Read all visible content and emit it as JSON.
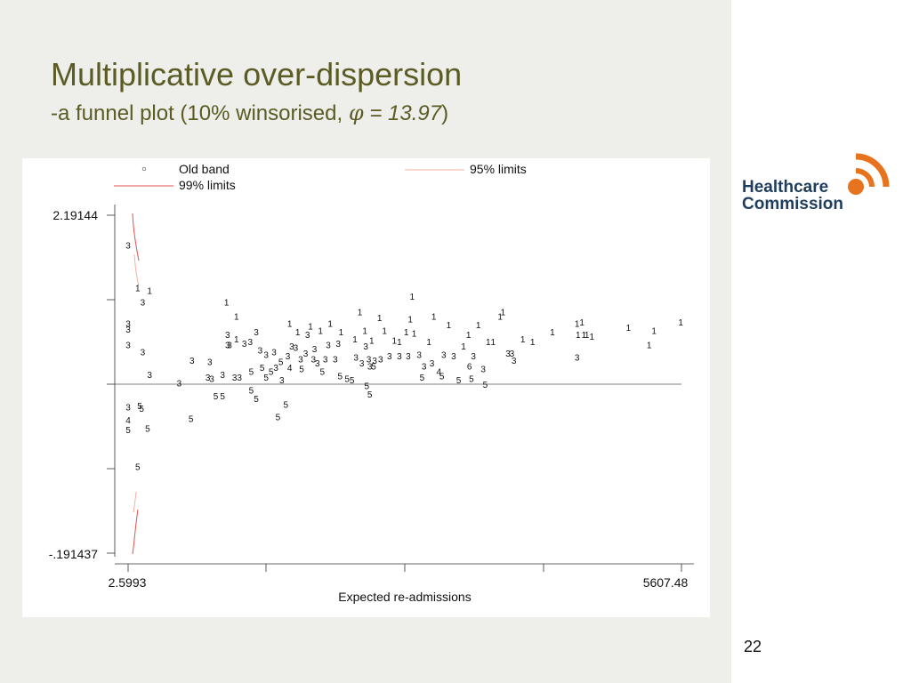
{
  "slide": {
    "title": "Multiplicative over-dispersion",
    "subtitle_prefix": "-a funnel plot (10% winsorised, ",
    "phi_symbol": "φ",
    "phi_value": " = 13.97",
    "subtitle_suffix": ")",
    "page_number": "22",
    "logo_line1": "Healthcare",
    "logo_line2": "Commission",
    "colors": {
      "title": "#5b5b24",
      "logo": "#e8731f",
      "logo_text": "#1f3d5c",
      "limit_line": "#e05050"
    }
  },
  "chart_data": {
    "type": "scatter",
    "xlabel": "Expected re-admissions",
    "x_tick_labels": [
      "2.5993",
      "5607.48"
    ],
    "y_tick_labels": [
      "2.19144",
      "-.191437"
    ],
    "xlim": [
      2.5993,
      5607.48
    ],
    "ylim": [
      -0.191437,
      2.19144
    ],
    "reference_y": 1,
    "legend": {
      "items": [
        "Old band",
        "95% limits",
        "99% limits"
      ],
      "placement": "top"
    },
    "grid": false,
    "points": [
      {
        "x": 2.6,
        "y": 1.98,
        "m": "3"
      },
      {
        "x": 100,
        "y": 1.68,
        "m": "1"
      },
      {
        "x": 220,
        "y": 1.66,
        "m": "1"
      },
      {
        "x": 2.6,
        "y": 1.43,
        "m": "3"
      },
      {
        "x": 2.6,
        "y": 1.39,
        "m": "3"
      },
      {
        "x": 2.6,
        "y": 1.28,
        "m": "3"
      },
      {
        "x": 150,
        "y": 1.23,
        "m": "3"
      },
      {
        "x": 150,
        "y": 1.58,
        "m": "3"
      },
      {
        "x": 2.6,
        "y": 0.84,
        "m": "3"
      },
      {
        "x": 120,
        "y": 0.85,
        "m": "5"
      },
      {
        "x": 140,
        "y": 0.83,
        "m": "5"
      },
      {
        "x": 2.6,
        "y": 0.75,
        "m": "4"
      },
      {
        "x": 2.6,
        "y": 0.68,
        "m": "5"
      },
      {
        "x": 200,
        "y": 0.69,
        "m": "5"
      },
      {
        "x": 100,
        "y": 0.42,
        "m": "5"
      },
      {
        "x": 220,
        "y": 1.07,
        "m": "3"
      },
      {
        "x": 520,
        "y": 1.01,
        "m": "3"
      },
      {
        "x": 650,
        "y": 1.17,
        "m": "3"
      },
      {
        "x": 640,
        "y": 0.76,
        "m": "5"
      },
      {
        "x": 810,
        "y": 1.05,
        "m": "3"
      },
      {
        "x": 850,
        "y": 1.04,
        "m": "3"
      },
      {
        "x": 830,
        "y": 1.16,
        "m": "3"
      },
      {
        "x": 890,
        "y": 0.92,
        "m": "5"
      },
      {
        "x": 960,
        "y": 1.07,
        "m": "3"
      },
      {
        "x": 960,
        "y": 0.92,
        "m": "5"
      },
      {
        "x": 1080,
        "y": 1.05,
        "m": "3"
      },
      {
        "x": 1130,
        "y": 1.05,
        "m": "3"
      },
      {
        "x": 1000,
        "y": 1.58,
        "m": "1"
      },
      {
        "x": 1100,
        "y": 1.48,
        "m": "1"
      },
      {
        "x": 1100,
        "y": 1.32,
        "m": "1"
      },
      {
        "x": 1010,
        "y": 1.35,
        "m": "3"
      },
      {
        "x": 1010,
        "y": 1.28,
        "m": "3"
      },
      {
        "x": 1030,
        "y": 1.28,
        "m": "3"
      },
      {
        "x": 1180,
        "y": 1.29,
        "m": "3"
      },
      {
        "x": 1240,
        "y": 1.3,
        "m": "3"
      },
      {
        "x": 1300,
        "y": 1.37,
        "m": "3"
      },
      {
        "x": 1250,
        "y": 1.09,
        "m": "5"
      },
      {
        "x": 1250,
        "y": 0.96,
        "m": "5"
      },
      {
        "x": 1300,
        "y": 0.9,
        "m": "5"
      },
      {
        "x": 1340,
        "y": 1.24,
        "m": "3"
      },
      {
        "x": 1400,
        "y": 1.21,
        "m": "3"
      },
      {
        "x": 1360,
        "y": 1.12,
        "m": "5"
      },
      {
        "x": 1400,
        "y": 1.05,
        "m": "5"
      },
      {
        "x": 1480,
        "y": 1.23,
        "m": "3"
      },
      {
        "x": 1550,
        "y": 1.16,
        "m": "5"
      },
      {
        "x": 1500,
        "y": 1.12,
        "m": "3"
      },
      {
        "x": 1450,
        "y": 1.09,
        "m": "5"
      },
      {
        "x": 1620,
        "y": 1.2,
        "m": "3"
      },
      {
        "x": 1660,
        "y": 1.27,
        "m": "3"
      },
      {
        "x": 1640,
        "y": 1.12,
        "m": "4"
      },
      {
        "x": 1700,
        "y": 1.26,
        "m": "3"
      },
      {
        "x": 1720,
        "y": 1.37,
        "m": "1"
      },
      {
        "x": 1640,
        "y": 1.43,
        "m": "1"
      },
      {
        "x": 1750,
        "y": 1.18,
        "m": "3"
      },
      {
        "x": 1760,
        "y": 1.11,
        "m": "5"
      },
      {
        "x": 1800,
        "y": 1.22,
        "m": "3"
      },
      {
        "x": 1850,
        "y": 1.41,
        "m": "1"
      },
      {
        "x": 1820,
        "y": 1.35,
        "m": "3"
      },
      {
        "x": 1880,
        "y": 1.18,
        "m": "3"
      },
      {
        "x": 1890,
        "y": 1.25,
        "m": "3"
      },
      {
        "x": 1920,
        "y": 1.15,
        "m": "3"
      },
      {
        "x": 1950,
        "y": 1.38,
        "m": "1"
      },
      {
        "x": 1970,
        "y": 1.09,
        "m": "5"
      },
      {
        "x": 1600,
        "y": 0.86,
        "m": "5"
      },
      {
        "x": 1520,
        "y": 0.77,
        "m": "5"
      },
      {
        "x": 1560,
        "y": 1.03,
        "m": "3"
      },
      {
        "x": 2000,
        "y": 1.18,
        "m": "3"
      },
      {
        "x": 2050,
        "y": 1.43,
        "m": "1"
      },
      {
        "x": 2030,
        "y": 1.28,
        "m": "3"
      },
      {
        "x": 2100,
        "y": 1.18,
        "m": "3"
      },
      {
        "x": 2130,
        "y": 1.29,
        "m": "3"
      },
      {
        "x": 2160,
        "y": 1.37,
        "m": "1"
      },
      {
        "x": 2150,
        "y": 1.06,
        "m": "5"
      },
      {
        "x": 2220,
        "y": 1.04,
        "m": "5"
      },
      {
        "x": 2270,
        "y": 1.03,
        "m": "5"
      },
      {
        "x": 2300,
        "y": 1.32,
        "m": "1"
      },
      {
        "x": 2310,
        "y": 1.19,
        "m": "3"
      },
      {
        "x": 2350,
        "y": 1.51,
        "m": "1"
      },
      {
        "x": 2370,
        "y": 1.15,
        "m": "3"
      },
      {
        "x": 2400,
        "y": 1.38,
        "m": "1"
      },
      {
        "x": 2410,
        "y": 1.27,
        "m": "3"
      },
      {
        "x": 2440,
        "y": 1.18,
        "m": "3"
      },
      {
        "x": 2450,
        "y": 1.13,
        "m": "3"
      },
      {
        "x": 2470,
        "y": 1.31,
        "m": "1"
      },
      {
        "x": 2490,
        "y": 1.13,
        "m": "5"
      },
      {
        "x": 2500,
        "y": 1.17,
        "m": "3"
      },
      {
        "x": 2420,
        "y": 0.99,
        "m": "5"
      },
      {
        "x": 2450,
        "y": 0.93,
        "m": "5"
      },
      {
        "x": 2550,
        "y": 1.47,
        "m": "1"
      },
      {
        "x": 2560,
        "y": 1.18,
        "m": "3"
      },
      {
        "x": 2600,
        "y": 1.38,
        "m": "1"
      },
      {
        "x": 2650,
        "y": 1.2,
        "m": "3"
      },
      {
        "x": 2700,
        "y": 1.31,
        "m": "1"
      },
      {
        "x": 2750,
        "y": 1.3,
        "m": "1"
      },
      {
        "x": 2750,
        "y": 1.2,
        "m": "3"
      },
      {
        "x": 2840,
        "y": 1.2,
        "m": "3"
      },
      {
        "x": 2820,
        "y": 1.37,
        "m": "1"
      },
      {
        "x": 2860,
        "y": 1.46,
        "m": "1"
      },
      {
        "x": 2880,
        "y": 1.62,
        "m": "1"
      },
      {
        "x": 2900,
        "y": 1.36,
        "m": "1"
      },
      {
        "x": 2950,
        "y": 1.21,
        "m": "3"
      },
      {
        "x": 2980,
        "y": 1.05,
        "m": "5"
      },
      {
        "x": 3000,
        "y": 1.13,
        "m": "3"
      },
      {
        "x": 3050,
        "y": 1.3,
        "m": "1"
      },
      {
        "x": 3080,
        "y": 1.15,
        "m": "3"
      },
      {
        "x": 3100,
        "y": 1.48,
        "m": "1"
      },
      {
        "x": 3150,
        "y": 1.09,
        "m": "4"
      },
      {
        "x": 3180,
        "y": 1.06,
        "m": "5"
      },
      {
        "x": 3200,
        "y": 1.21,
        "m": "3"
      },
      {
        "x": 3250,
        "y": 1.42,
        "m": "1"
      },
      {
        "x": 3300,
        "y": 1.2,
        "m": "3"
      },
      {
        "x": 3350,
        "y": 1.03,
        "m": "5"
      },
      {
        "x": 3400,
        "y": 1.27,
        "m": "1"
      },
      {
        "x": 3450,
        "y": 1.35,
        "m": "1"
      },
      {
        "x": 3460,
        "y": 1.13,
        "m": "6"
      },
      {
        "x": 3500,
        "y": 1.2,
        "m": "3"
      },
      {
        "x": 3480,
        "y": 1.04,
        "m": "5"
      },
      {
        "x": 3550,
        "y": 1.42,
        "m": "1"
      },
      {
        "x": 3600,
        "y": 1.11,
        "m": "3"
      },
      {
        "x": 3620,
        "y": 1.0,
        "m": "5"
      },
      {
        "x": 3650,
        "y": 1.3,
        "m": "1"
      },
      {
        "x": 3700,
        "y": 1.3,
        "m": "1"
      },
      {
        "x": 3770,
        "y": 1.48,
        "m": "1"
      },
      {
        "x": 3800,
        "y": 1.51,
        "m": "1"
      },
      {
        "x": 3850,
        "y": 1.22,
        "m": "3"
      },
      {
        "x": 3890,
        "y": 1.22,
        "m": "3"
      },
      {
        "x": 3910,
        "y": 1.17,
        "m": "3"
      },
      {
        "x": 4000,
        "y": 1.32,
        "m": "1"
      },
      {
        "x": 4100,
        "y": 1.3,
        "m": "1"
      },
      {
        "x": 4300,
        "y": 1.37,
        "m": "1"
      },
      {
        "x": 4550,
        "y": 1.43,
        "m": "1"
      },
      {
        "x": 4560,
        "y": 1.35,
        "m": "1"
      },
      {
        "x": 4600,
        "y": 1.44,
        "m": "1"
      },
      {
        "x": 4620,
        "y": 1.35,
        "m": "1"
      },
      {
        "x": 4650,
        "y": 1.35,
        "m": "1"
      },
      {
        "x": 4550,
        "y": 1.19,
        "m": "3"
      },
      {
        "x": 4700,
        "y": 1.34,
        "m": "1"
      },
      {
        "x": 5070,
        "y": 1.4,
        "m": "1"
      },
      {
        "x": 5280,
        "y": 1.28,
        "m": "1"
      },
      {
        "x": 5330,
        "y": 1.38,
        "m": "1"
      },
      {
        "x": 5600,
        "y": 1.44,
        "m": "1"
      }
    ]
  }
}
